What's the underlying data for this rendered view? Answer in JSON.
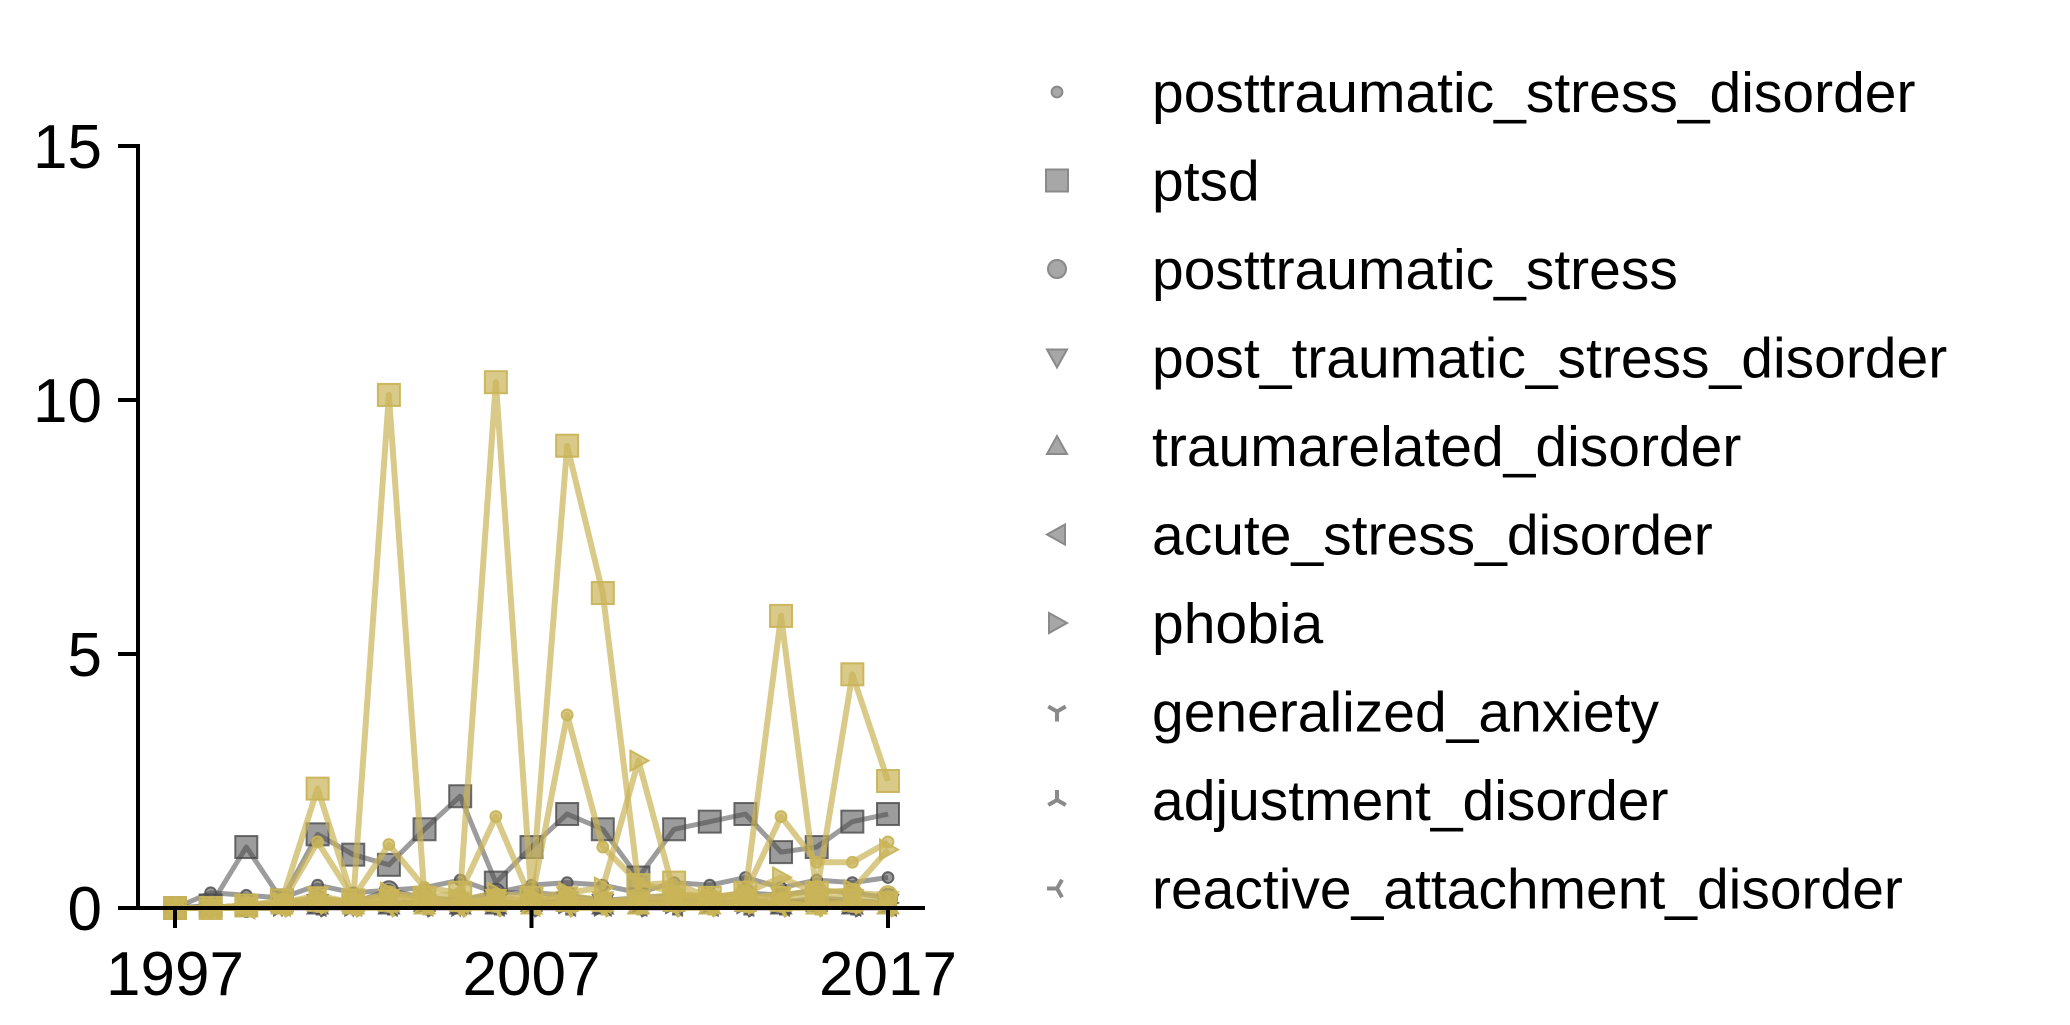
{
  "chart_data": {
    "type": "line",
    "title": "",
    "xlabel": "",
    "ylabel": "",
    "x": [
      1997,
      1998,
      1999,
      2000,
      2001,
      2002,
      2003,
      2004,
      2005,
      2006,
      2007,
      2008,
      2009,
      2010,
      2011,
      2012,
      2013,
      2014,
      2015,
      2016,
      2017
    ],
    "xlim": [
      1997,
      2017
    ],
    "ylim": [
      0,
      15
    ],
    "xticks": [
      1997,
      2007,
      2017
    ],
    "xtick_labels": [
      "1997",
      "2007",
      "2017"
    ],
    "yticks": [
      0,
      5,
      10,
      15
    ],
    "ytick_labels": [
      "0",
      "5",
      "10",
      "15"
    ],
    "grid": false,
    "legend_position": "right",
    "colors": {
      "dark": "#4a4a4a",
      "gold": "#c9b458",
      "legend": "#8a8a8a"
    },
    "series": [
      {
        "name": "posttraumatic_stress_disorder",
        "marker": "point",
        "dark": [
          0.0,
          0.3,
          0.25,
          0.2,
          0.45,
          0.3,
          0.35,
          0.4,
          0.55,
          0.3,
          0.45,
          0.5,
          0.45,
          0.3,
          0.5,
          0.45,
          0.6,
          0.4,
          0.55,
          0.5,
          0.6
        ],
        "gold": [
          0.0,
          0.0,
          0.05,
          0.1,
          1.3,
          0.2,
          1.25,
          0.4,
          0.3,
          1.8,
          0.15,
          3.8,
          1.2,
          0.5,
          0.3,
          0.2,
          0.3,
          1.8,
          0.9,
          0.9,
          1.3
        ]
      },
      {
        "name": "ptsd",
        "marker": "square",
        "dark": [
          0.0,
          0.05,
          1.2,
          0.15,
          1.45,
          1.05,
          0.85,
          1.55,
          2.2,
          0.5,
          1.2,
          1.85,
          1.55,
          0.6,
          1.55,
          1.7,
          1.85,
          1.1,
          1.2,
          1.7,
          1.85
        ],
        "gold": [
          0.0,
          0.0,
          0.05,
          0.15,
          2.35,
          0.15,
          10.1,
          0.2,
          0.3,
          10.35,
          0.2,
          9.1,
          6.2,
          0.45,
          0.5,
          0.2,
          0.3,
          5.75,
          0.3,
          4.6,
          2.5
        ]
      },
      {
        "name": "posttraumatic_stress",
        "marker": "circle",
        "dark": [
          0.0,
          0.0,
          0.05,
          0.1,
          0.15,
          0.1,
          0.35,
          0.2,
          0.15,
          0.3,
          0.3,
          0.25,
          0.15,
          0.2,
          0.25,
          0.2,
          0.3,
          0.25,
          0.35,
          0.3,
          0.2
        ],
        "gold": [
          0.0,
          0.0,
          0.05,
          0.1,
          0.2,
          0.1,
          0.25,
          0.15,
          0.1,
          0.2,
          0.15,
          0.2,
          0.1,
          0.2,
          0.25,
          0.2,
          0.2,
          0.25,
          0.35,
          0.3,
          0.25
        ]
      },
      {
        "name": "post_traumatic_stress_disorder",
        "marker": "triangle-down",
        "dark": [
          0.0,
          0.0,
          0.05,
          0.05,
          0.1,
          0.05,
          0.1,
          0.1,
          0.05,
          0.1,
          0.1,
          0.15,
          0.1,
          0.1,
          0.15,
          0.1,
          0.15,
          0.1,
          0.2,
          0.15,
          0.1
        ],
        "gold": [
          0.0,
          0.0,
          0.05,
          0.1,
          0.25,
          0.1,
          0.2,
          0.15,
          0.1,
          0.2,
          0.1,
          0.25,
          0.15,
          0.15,
          0.2,
          0.15,
          0.2,
          0.25,
          0.2,
          0.2,
          0.15
        ]
      },
      {
        "name": "traumarelated_disorder",
        "marker": "triangle-up",
        "dark": [
          0.0,
          0.0,
          0.0,
          0.05,
          0.05,
          0.05,
          0.05,
          0.1,
          0.05,
          0.05,
          0.1,
          0.1,
          0.05,
          0.05,
          0.1,
          0.05,
          0.1,
          0.05,
          0.1,
          0.05,
          0.05
        ],
        "gold": [
          0.0,
          0.0,
          0.05,
          0.05,
          0.1,
          0.05,
          0.1,
          0.05,
          0.1,
          0.1,
          0.05,
          0.1,
          0.1,
          0.05,
          0.1,
          0.05,
          0.1,
          0.1,
          0.05,
          0.1,
          0.05
        ]
      },
      {
        "name": "acute_stress_disorder",
        "marker": "triangle-left",
        "dark": [
          0.0,
          0.0,
          0.0,
          0.05,
          0.05,
          0.05,
          0.05,
          0.05,
          0.1,
          0.05,
          0.05,
          0.05,
          0.05,
          0.05,
          0.05,
          0.05,
          0.05,
          0.05,
          0.1,
          0.05,
          0.05
        ],
        "gold": [
          0.0,
          0.0,
          0.0,
          0.05,
          0.1,
          0.05,
          0.1,
          0.05,
          0.1,
          0.15,
          0.05,
          0.1,
          0.1,
          0.1,
          0.15,
          0.1,
          0.1,
          0.15,
          0.1,
          0.1,
          0.1
        ]
      },
      {
        "name": "phobia",
        "marker": "triangle-right",
        "dark": [
          0.0,
          0.0,
          0.05,
          0.05,
          0.1,
          0.05,
          0.1,
          0.1,
          0.05,
          0.1,
          0.1,
          0.1,
          0.05,
          0.1,
          0.1,
          0.1,
          0.1,
          0.1,
          0.15,
          0.1,
          0.1
        ],
        "gold": [
          0.0,
          0.0,
          0.05,
          0.1,
          0.2,
          0.1,
          0.3,
          0.2,
          0.15,
          0.3,
          0.2,
          0.3,
          0.4,
          2.9,
          0.3,
          0.2,
          0.3,
          0.6,
          0.3,
          0.35,
          1.15
        ]
      },
      {
        "name": "generalized_anxiety",
        "marker": "tri-down",
        "dark": [
          0.0,
          0.0,
          0.0,
          0.05,
          0.05,
          0.05,
          0.05,
          0.05,
          0.05,
          0.05,
          0.05,
          0.05,
          0.05,
          0.05,
          0.05,
          0.05,
          0.05,
          0.05,
          0.05,
          0.05,
          0.05
        ],
        "gold": [
          0.0,
          0.0,
          0.05,
          0.05,
          0.1,
          0.05,
          0.1,
          0.05,
          0.05,
          0.1,
          0.05,
          0.1,
          0.05,
          0.05,
          0.1,
          0.05,
          0.1,
          0.1,
          0.05,
          0.1,
          0.05
        ]
      },
      {
        "name": "adjustment_disorder",
        "marker": "tri-up",
        "dark": [
          0.0,
          0.0,
          0.0,
          0.0,
          0.05,
          0.05,
          0.05,
          0.05,
          0.05,
          0.05,
          0.05,
          0.05,
          0.05,
          0.05,
          0.05,
          0.05,
          0.05,
          0.05,
          0.05,
          0.05,
          0.05
        ],
        "gold": [
          0.0,
          0.0,
          0.0,
          0.05,
          0.05,
          0.05,
          0.05,
          0.05,
          0.05,
          0.05,
          0.05,
          0.05,
          0.05,
          0.05,
          0.05,
          0.05,
          0.05,
          0.05,
          0.05,
          0.05,
          0.05
        ]
      },
      {
        "name": "reactive_attachment_disorder",
        "marker": "tri-left",
        "dark": [
          0.0,
          0.0,
          0.0,
          0.0,
          0.0,
          0.0,
          0.05,
          0.0,
          0.0,
          0.05,
          0.0,
          0.0,
          0.05,
          0.0,
          0.0,
          0.05,
          0.0,
          0.0,
          0.05,
          0.0,
          0.0
        ],
        "gold": [
          0.0,
          0.0,
          0.0,
          0.0,
          0.05,
          0.0,
          0.0,
          0.05,
          0.0,
          0.0,
          0.05,
          0.0,
          0.0,
          0.05,
          0.0,
          0.0,
          0.05,
          0.0,
          0.0,
          0.05,
          0.0
        ]
      }
    ]
  }
}
